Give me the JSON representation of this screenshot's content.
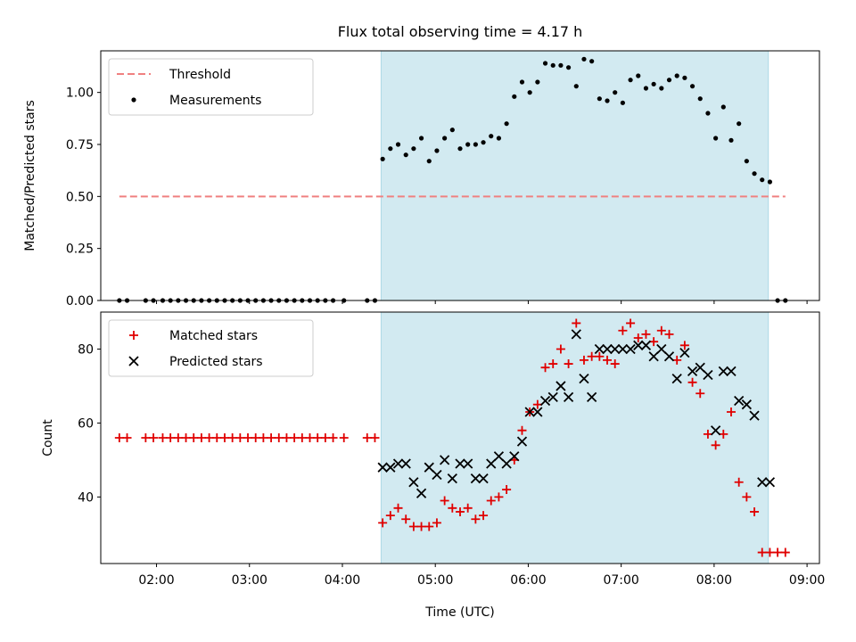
{
  "title": "Flux total observing time = 4.17 h",
  "colors": {
    "threshold": "#f08080",
    "measurement": "#000000",
    "matched": "#e00000",
    "predicted": "#000000",
    "observing_span": "#add8e6"
  },
  "chart_data": [
    {
      "type": "scatter",
      "ylabel": "Matched/Predicted stars",
      "xlim": [
        "01:24",
        "09:08"
      ],
      "ylim": [
        0,
        1.2
      ],
      "grid": false,
      "legend_position": "top-left",
      "yticks": [
        "0.00",
        "0.25",
        "0.50",
        "0.75",
        "1.00"
      ],
      "shaded_span": [
        "04:25",
        "08:35"
      ],
      "threshold": {
        "name": "Threshold",
        "x": [
          "01:36",
          "08:46"
        ],
        "y": 0.5
      },
      "series": [
        {
          "name": "Measurements",
          "x": [
            "01:36",
            "01:41",
            "01:53",
            "01:58",
            "02:04",
            "02:09",
            "02:14",
            "02:19",
            "02:24",
            "02:29",
            "02:34",
            "02:39",
            "02:44",
            "02:49",
            "02:54",
            "02:59",
            "03:04",
            "03:09",
            "03:14",
            "03:19",
            "03:24",
            "03:29",
            "03:34",
            "03:39",
            "03:44",
            "03:49",
            "03:54",
            "04:01",
            "04:16",
            "04:21",
            "04:26",
            "04:31",
            "04:36",
            "04:41",
            "04:46",
            "04:51",
            "04:56",
            "05:01",
            "05:06",
            "05:11",
            "05:16",
            "05:21",
            "05:26",
            "05:31",
            "05:36",
            "05:41",
            "05:46",
            "05:51",
            "05:56",
            "06:01",
            "06:06",
            "06:11",
            "06:16",
            "06:21",
            "06:26",
            "06:31",
            "06:36",
            "06:41",
            "06:46",
            "06:51",
            "06:56",
            "07:01",
            "07:06",
            "07:11",
            "07:16",
            "07:21",
            "07:26",
            "07:31",
            "07:36",
            "07:41",
            "07:46",
            "07:51",
            "07:56",
            "08:01",
            "08:06",
            "08:11",
            "08:16",
            "08:21",
            "08:26",
            "08:31",
            "08:36",
            "08:41",
            "08:46"
          ],
          "y": [
            0,
            0,
            0,
            0,
            0,
            0,
            0,
            0,
            0,
            0,
            0,
            0,
            0,
            0,
            0,
            0,
            0,
            0,
            0,
            0,
            0,
            0,
            0,
            0,
            0,
            0,
            0,
            0,
            0,
            0,
            0.68,
            0.73,
            0.75,
            0.7,
            0.73,
            0.78,
            0.67,
            0.72,
            0.78,
            0.82,
            0.73,
            0.75,
            0.75,
            0.76,
            0.79,
            0.78,
            0.85,
            0.98,
            1.05,
            1.0,
            1.05,
            1.14,
            1.13,
            1.13,
            1.12,
            1.03,
            1.16,
            1.15,
            0.97,
            0.96,
            1.0,
            0.95,
            1.06,
            1.08,
            1.02,
            1.04,
            1.02,
            1.06,
            1.08,
            1.07,
            1.03,
            0.97,
            0.9,
            0.78,
            0.93,
            0.77,
            0.85,
            0.67,
            0.61,
            0.58,
            0.57,
            0,
            0
          ]
        }
      ]
    },
    {
      "type": "scatter",
      "xlabel": "Time (UTC)",
      "ylabel": "Count",
      "xlim": [
        "01:24",
        "09:08"
      ],
      "ylim": [
        22,
        90
      ],
      "grid": false,
      "legend_position": "top-left",
      "xticks": [
        "02:00",
        "03:00",
        "04:00",
        "05:00",
        "06:00",
        "07:00",
        "08:00",
        "09:00"
      ],
      "yticks": [
        "40",
        "60",
        "80"
      ],
      "shaded_span": [
        "04:25",
        "08:35"
      ],
      "series": [
        {
          "name": "Matched stars",
          "marker": "plus",
          "x": [
            "01:36",
            "01:41",
            "01:53",
            "01:58",
            "02:04",
            "02:09",
            "02:14",
            "02:19",
            "02:24",
            "02:29",
            "02:34",
            "02:39",
            "02:44",
            "02:49",
            "02:54",
            "02:59",
            "03:04",
            "03:09",
            "03:14",
            "03:19",
            "03:24",
            "03:29",
            "03:34",
            "03:39",
            "03:44",
            "03:49",
            "03:54",
            "04:01",
            "04:16",
            "04:21",
            "04:26",
            "04:31",
            "04:36",
            "04:41",
            "04:46",
            "04:51",
            "04:56",
            "05:01",
            "05:06",
            "05:11",
            "05:16",
            "05:21",
            "05:26",
            "05:31",
            "05:36",
            "05:41",
            "05:46",
            "05:51",
            "05:56",
            "06:01",
            "06:06",
            "06:11",
            "06:16",
            "06:21",
            "06:26",
            "06:31",
            "06:36",
            "06:41",
            "06:46",
            "06:51",
            "06:56",
            "07:01",
            "07:06",
            "07:11",
            "07:16",
            "07:21",
            "07:26",
            "07:31",
            "07:36",
            "07:41",
            "07:46",
            "07:51",
            "07:56",
            "08:01",
            "08:06",
            "08:11",
            "08:16",
            "08:21",
            "08:26",
            "08:31",
            "08:36",
            "08:41",
            "08:46"
          ],
          "y": [
            56,
            56,
            56,
            56,
            56,
            56,
            56,
            56,
            56,
            56,
            56,
            56,
            56,
            56,
            56,
            56,
            56,
            56,
            56,
            56,
            56,
            56,
            56,
            56,
            56,
            56,
            56,
            56,
            56,
            56,
            33,
            35,
            37,
            34,
            32,
            32,
            32,
            33,
            39,
            37,
            36,
            37,
            34,
            35,
            39,
            40,
            42,
            50,
            58,
            63,
            65,
            75,
            76,
            80,
            76,
            87,
            77,
            78,
            78,
            77,
            76,
            85,
            87,
            83,
            84,
            82,
            85,
            84,
            77,
            81,
            71,
            68,
            57,
            54,
            57,
            63,
            44,
            40,
            36,
            25,
            25,
            25,
            25
          ]
        },
        {
          "name": "Predicted stars",
          "marker": "x",
          "x": [
            "04:26",
            "04:31",
            "04:36",
            "04:41",
            "04:46",
            "04:51",
            "04:56",
            "05:01",
            "05:06",
            "05:11",
            "05:16",
            "05:21",
            "05:26",
            "05:31",
            "05:36",
            "05:41",
            "05:46",
            "05:51",
            "05:56",
            "06:01",
            "06:06",
            "06:11",
            "06:16",
            "06:21",
            "06:26",
            "06:31",
            "06:36",
            "06:41",
            "06:46",
            "06:51",
            "06:56",
            "07:01",
            "07:06",
            "07:11",
            "07:16",
            "07:21",
            "07:26",
            "07:31",
            "07:36",
            "07:41",
            "07:46",
            "07:51",
            "07:56",
            "08:01",
            "08:06",
            "08:11",
            "08:16",
            "08:21",
            "08:26",
            "08:31",
            "08:36"
          ],
          "y": [
            48,
            48,
            49,
            49,
            44,
            41,
            48,
            46,
            50,
            45,
            49,
            49,
            45,
            45,
            49,
            51,
            49,
            51,
            55,
            63,
            63,
            66,
            67,
            70,
            67,
            84,
            72,
            67,
            80,
            80,
            80,
            80,
            80,
            81,
            81,
            78,
            80,
            78,
            72,
            79,
            74,
            75,
            73,
            58,
            74,
            74,
            66,
            65,
            62,
            44,
            44
          ]
        }
      ]
    }
  ]
}
